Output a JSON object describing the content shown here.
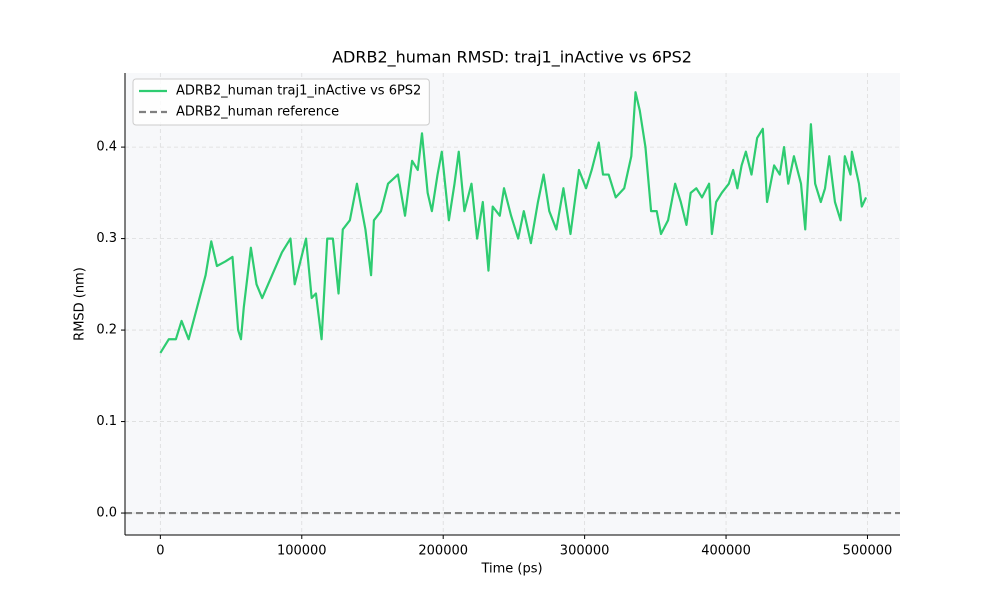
{
  "chart_data": {
    "type": "line",
    "title": "ADRB2_human RMSD: traj1_inActive vs 6PS2",
    "x_label": "Time (ps)",
    "y_label": "RMSD (nm)",
    "xlim": [
      -25000,
      523000
    ],
    "ylim": [
      -0.024,
      0.481
    ],
    "xticks": [
      0,
      100000,
      200000,
      300000,
      400000,
      500000
    ],
    "yticks": [
      {
        "value": 0,
        "label": "0.0"
      },
      0.1,
      0.2,
      0.3,
      0.4
    ],
    "grid": true,
    "legend": "upper-left",
    "x": [
      0,
      6000,
      11000,
      15000,
      20000,
      26000,
      32000,
      36000,
      40000,
      46000,
      51000,
      55000,
      57000,
      59000,
      64000,
      68000,
      72000,
      79000,
      86000,
      92000,
      95000,
      103000,
      107000,
      110000,
      114000,
      118000,
      122000,
      126000,
      129000,
      134000,
      139000,
      145000,
      149000,
      151000,
      156000,
      161000,
      168000,
      173000,
      178000,
      182000,
      185000,
      189000,
      192000,
      196000,
      199000,
      204000,
      208000,
      211000,
      215000,
      220000,
      224000,
      228000,
      232000,
      235000,
      240000,
      243000,
      248000,
      253000,
      257000,
      262000,
      267000,
      271000,
      275000,
      280000,
      285000,
      290000,
      296000,
      301000,
      305000,
      310000,
      313000,
      317000,
      322000,
      328000,
      333000,
      336000,
      339000,
      343000,
      347000,
      351000,
      354000,
      359000,
      364000,
      368000,
      372000,
      375000,
      379000,
      383000,
      388000,
      390000,
      393000,
      397000,
      402000,
      405000,
      408000,
      411000,
      414000,
      418000,
      422000,
      426000,
      429000,
      434000,
      438000,
      441000,
      444000,
      448000,
      453000,
      456000,
      460000,
      463000,
      467000,
      470000,
      473000,
      477000,
      481000,
      484000,
      488000,
      489000,
      494000,
      496000,
      499000
    ],
    "series": [
      {
        "name": "ADRB2_human traj1_inActive vs 6PS2",
        "color": "#2ecc71",
        "style": "solid",
        "values": [
          0.175,
          0.19,
          0.19,
          0.21,
          0.19,
          0.225,
          0.26,
          0.297,
          0.27,
          0.275,
          0.28,
          0.2,
          0.19,
          0.225,
          0.29,
          0.25,
          0.235,
          0.26,
          0.285,
          0.3,
          0.25,
          0.3,
          0.235,
          0.24,
          0.19,
          0.3,
          0.3,
          0.24,
          0.31,
          0.32,
          0.36,
          0.31,
          0.26,
          0.32,
          0.33,
          0.36,
          0.37,
          0.325,
          0.385,
          0.375,
          0.415,
          0.35,
          0.33,
          0.37,
          0.395,
          0.32,
          0.36,
          0.395,
          0.33,
          0.36,
          0.3,
          0.34,
          0.265,
          0.335,
          0.325,
          0.355,
          0.325,
          0.3,
          0.33,
          0.295,
          0.34,
          0.37,
          0.33,
          0.31,
          0.355,
          0.305,
          0.375,
          0.355,
          0.375,
          0.405,
          0.37,
          0.37,
          0.345,
          0.355,
          0.39,
          0.46,
          0.44,
          0.4,
          0.33,
          0.33,
          0.305,
          0.32,
          0.36,
          0.34,
          0.315,
          0.35,
          0.355,
          0.345,
          0.36,
          0.305,
          0.34,
          0.35,
          0.36,
          0.375,
          0.355,
          0.38,
          0.395,
          0.37,
          0.41,
          0.42,
          0.34,
          0.38,
          0.37,
          0.4,
          0.36,
          0.39,
          0.36,
          0.31,
          0.425,
          0.36,
          0.34,
          0.355,
          0.39,
          0.34,
          0.32,
          0.39,
          0.37,
          0.395,
          0.36,
          0.335,
          0.345
        ]
      },
      {
        "name": "ADRB2_human reference",
        "color": "#808080",
        "style": "dashed",
        "y": 0
      }
    ]
  }
}
